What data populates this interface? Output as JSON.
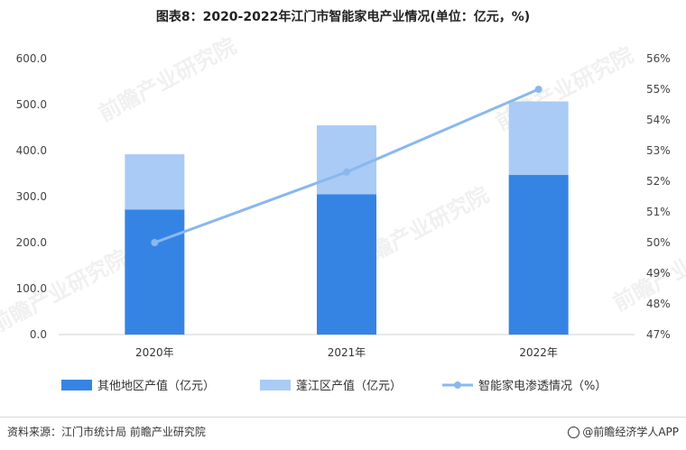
{
  "title": "图表8：2020-2022年江门市智能家电产业情况(单位：亿元，%)",
  "source": "资料来源：江门市统计局 前瞻产业研究院",
  "brand": "@前瞻经济学人APP",
  "watermark": "前瞻产业研究院",
  "chart_data": {
    "type": "bar",
    "stacked": true,
    "categories": [
      "2020年",
      "2021年",
      "2022年"
    ],
    "series": [
      {
        "name": "其他地区产值（亿元）",
        "values": [
          272,
          305,
          347
        ],
        "color": "#3584e4",
        "axis": "left",
        "kind": "bar"
      },
      {
        "name": "蓬江区产值（亿元）",
        "values": [
          120,
          150,
          160
        ],
        "color": "#a9cbf5",
        "axis": "left",
        "kind": "bar"
      },
      {
        "name": "智能家电渗透情况（%）",
        "values": [
          50.0,
          52.3,
          55.0
        ],
        "color": "#8ab8ee",
        "axis": "right",
        "kind": "line"
      }
    ],
    "y_left": {
      "min": 0,
      "max": 600,
      "step": 100,
      "ticks": [
        "0.0",
        "100.0",
        "200.0",
        "300.0",
        "400.0",
        "500.0",
        "600.0"
      ]
    },
    "y_right": {
      "min": 47,
      "max": 56,
      "step": 1,
      "ticks": [
        "47%",
        "48%",
        "49%",
        "50%",
        "51%",
        "52%",
        "53%",
        "54%",
        "55%",
        "56%"
      ]
    },
    "grid": false,
    "legend_position": "bottom"
  }
}
